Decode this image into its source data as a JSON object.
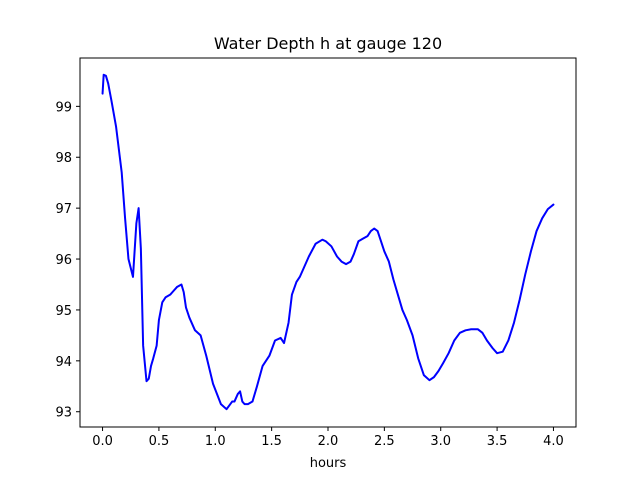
{
  "chart_data": {
    "type": "line",
    "title": "Water Depth h at gauge 120",
    "xlabel": "hours",
    "ylabel": "",
    "xlim": [
      -0.2,
      4.2
    ],
    "ylim": [
      92.7,
      99.95
    ],
    "xticks": [
      0.0,
      0.5,
      1.0,
      1.5,
      2.0,
      2.5,
      3.0,
      3.5,
      4.0
    ],
    "xtick_labels": [
      "0.0",
      "0.5",
      "1.0",
      "1.5",
      "2.0",
      "2.5",
      "3.0",
      "3.5",
      "4.0"
    ],
    "yticks": [
      93,
      94,
      95,
      96,
      97,
      98,
      99
    ],
    "ytick_labels": [
      "93",
      "94",
      "95",
      "96",
      "97",
      "98",
      "99"
    ],
    "grid": false,
    "series": [
      {
        "color": "#0000ff",
        "x": [
          0.0,
          0.01,
          0.03,
          0.05,
          0.08,
          0.12,
          0.17,
          0.2,
          0.23,
          0.27,
          0.3,
          0.32,
          0.34,
          0.36,
          0.39,
          0.41,
          0.43,
          0.45,
          0.48,
          0.5,
          0.53,
          0.56,
          0.6,
          0.62,
          0.66,
          0.7,
          0.72,
          0.74,
          0.77,
          0.82,
          0.87,
          0.92,
          0.98,
          1.05,
          1.1,
          1.15,
          1.17,
          1.2,
          1.22,
          1.24,
          1.26,
          1.29,
          1.33,
          1.37,
          1.42,
          1.48,
          1.53,
          1.58,
          1.61,
          1.65,
          1.68,
          1.72,
          1.75,
          1.78,
          1.83,
          1.89,
          1.95,
          1.98,
          2.03,
          2.08,
          2.12,
          2.16,
          2.2,
          2.23,
          2.27,
          2.31,
          2.35,
          2.38,
          2.41,
          2.44,
          2.47,
          2.5,
          2.54,
          2.58,
          2.62,
          2.66,
          2.7,
          2.75,
          2.8,
          2.85,
          2.9,
          2.94,
          2.98,
          3.02,
          3.07,
          3.12,
          3.17,
          3.22,
          3.27,
          3.33,
          3.37,
          3.41,
          3.46,
          3.5,
          3.55,
          3.6,
          3.65,
          3.7,
          3.75,
          3.8,
          3.85,
          3.9,
          3.95,
          4.0
        ],
        "y": [
          99.25,
          99.62,
          99.6,
          99.45,
          99.1,
          98.6,
          97.7,
          96.8,
          96.0,
          95.65,
          96.7,
          97.0,
          96.2,
          94.3,
          93.6,
          93.65,
          93.9,
          94.05,
          94.3,
          94.8,
          95.15,
          95.25,
          95.3,
          95.35,
          95.45,
          95.5,
          95.35,
          95.05,
          94.85,
          94.6,
          94.5,
          94.1,
          93.55,
          93.15,
          93.05,
          93.2,
          93.2,
          93.35,
          93.4,
          93.2,
          93.15,
          93.15,
          93.2,
          93.5,
          93.9,
          94.1,
          94.4,
          94.45,
          94.35,
          94.75,
          95.3,
          95.55,
          95.65,
          95.8,
          96.05,
          96.3,
          96.38,
          96.35,
          96.25,
          96.05,
          95.95,
          95.9,
          95.95,
          96.1,
          96.35,
          96.4,
          96.45,
          96.55,
          96.6,
          96.55,
          96.35,
          96.15,
          95.95,
          95.6,
          95.3,
          95.0,
          94.8,
          94.5,
          94.05,
          93.72,
          93.62,
          93.68,
          93.8,
          93.95,
          94.15,
          94.4,
          94.55,
          94.6,
          94.62,
          94.62,
          94.55,
          94.4,
          94.25,
          94.15,
          94.18,
          94.4,
          94.75,
          95.2,
          95.7,
          96.15,
          96.55,
          96.8,
          96.98,
          97.07
        ]
      }
    ]
  }
}
